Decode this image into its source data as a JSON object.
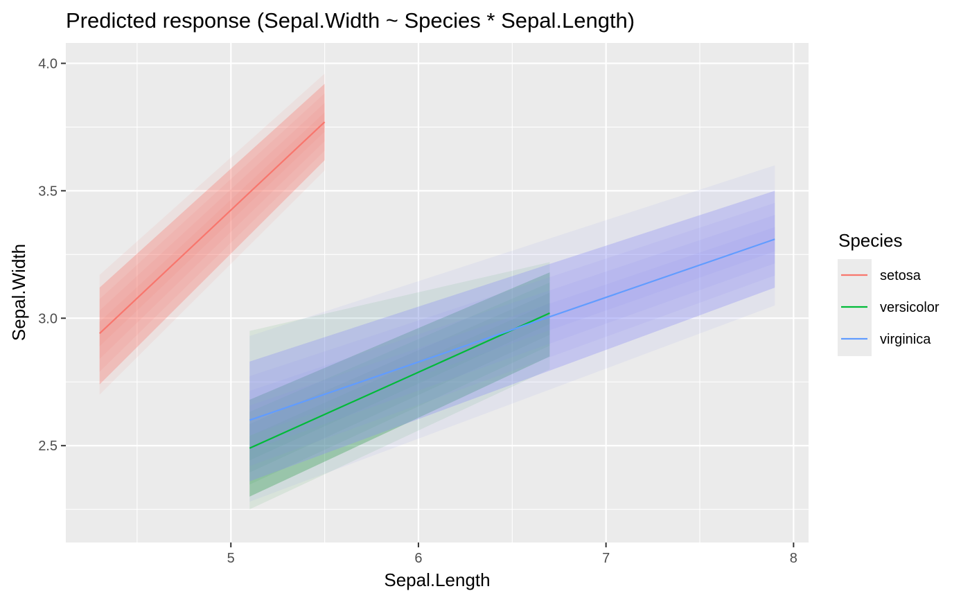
{
  "chart_data": {
    "type": "line",
    "title": "Predicted response (Sepal.Width ~ Species * Sepal.Length)",
    "xlabel": "Sepal.Length",
    "ylabel": "Sepal.Width",
    "xlim": [
      4.12,
      8.08
    ],
    "ylim": [
      2.12,
      4.08
    ],
    "x_ticks": [
      5,
      6,
      7,
      8
    ],
    "x_tick_labels": [
      "5",
      "6",
      "7",
      "8"
    ],
    "x_minor_ticks": [
      4.5,
      5.5,
      6.5,
      7.5
    ],
    "y_ticks": [
      2.5,
      3.0,
      3.5,
      4.0
    ],
    "y_tick_labels": [
      "2.5",
      "3.0",
      "3.5",
      "4.0"
    ],
    "y_minor_ticks": [
      2.25,
      2.75,
      3.25,
      3.75
    ],
    "grid": true,
    "legend": {
      "title": "Species",
      "position": "right"
    },
    "colors": {
      "panel": "#EBEBEB",
      "grid": "#FFFFFF"
    },
    "series": [
      {
        "name": "setosa",
        "color": "#F8766D",
        "band_color": "#F8766D",
        "x": [
          4.3,
          5.5
        ],
        "y": [
          2.94,
          3.77
        ],
        "band_lower": [
          2.74,
          3.62
        ],
        "band_upper": [
          3.12,
          3.92
        ],
        "band_outer_lower": [
          2.7,
          3.58
        ],
        "band_outer_upper": [
          3.17,
          3.96
        ]
      },
      {
        "name": "versicolor",
        "color": "#00BA38",
        "band_color": "#1E9A35",
        "x": [
          5.1,
          6.7
        ],
        "y": [
          2.49,
          3.02
        ],
        "band_lower": [
          2.3,
          2.85
        ],
        "band_upper": [
          2.68,
          3.18
        ],
        "band_outer_lower": [
          2.25,
          2.8
        ],
        "band_outer_upper": [
          2.95,
          3.22
        ]
      },
      {
        "name": "virginica",
        "color": "#619CFF",
        "band_color": "#8A8CF5",
        "x": [
          5.1,
          7.9
        ],
        "y": [
          2.6,
          3.31
        ],
        "band_lower": [
          2.36,
          3.12
        ],
        "band_upper": [
          2.83,
          3.5
        ],
        "band_outer_lower": [
          2.28,
          3.05
        ],
        "band_outer_upper": [
          2.93,
          3.6
        ]
      }
    ]
  }
}
